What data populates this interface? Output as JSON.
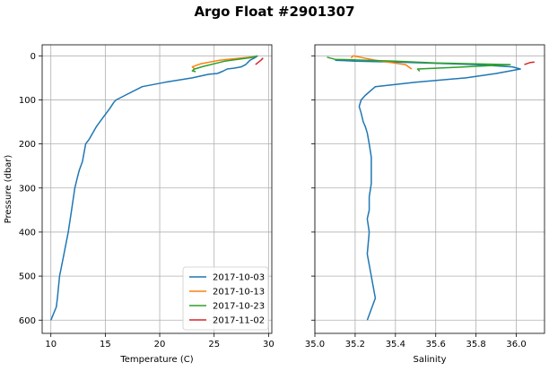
{
  "figure": {
    "title": "Argo Float #2901307"
  },
  "chart_data": [
    {
      "type": "line",
      "xlabel": "Temperature (C)",
      "ylabel": "Pressure (dbar)",
      "xlim": [
        9.2,
        30.3
      ],
      "ylim": [
        630,
        -25
      ],
      "y_inverted": true,
      "xticks": [
        10,
        15,
        20,
        25,
        30
      ],
      "yticks": [
        0,
        100,
        200,
        300,
        400,
        500,
        600
      ],
      "grid": true,
      "legend": "lower-right",
      "series": [
        {
          "name": "2017-10-03",
          "color": "#1f77b4",
          "x": [
            29.0,
            28.7,
            28.3,
            27.9,
            27.5,
            26.8,
            26.2,
            25.8,
            25.3,
            24.5,
            23.0,
            20.5,
            18.4,
            16.8,
            16.0,
            15.8,
            15.4,
            14.8,
            14.2,
            13.5,
            13.2,
            12.9,
            12.6,
            12.4,
            12.2,
            11.9,
            11.6,
            11.2,
            10.8,
            10.6,
            10.5,
            10.0
          ],
          "y": [
            0,
            5,
            10,
            20,
            25,
            28,
            30,
            35,
            40,
            42,
            50,
            60,
            70,
            90,
            100,
            105,
            120,
            140,
            160,
            190,
            200,
            240,
            260,
            280,
            300,
            350,
            400,
            450,
            500,
            550,
            570,
            600
          ]
        },
        {
          "name": "2017-10-13",
          "color": "#ff7f0e",
          "x": [
            28.8,
            27.5,
            25.5,
            23.8,
            23.0,
            23.2
          ],
          "y": [
            2,
            5,
            10,
            18,
            25,
            30
          ]
        },
        {
          "name": "2017-10-23",
          "color": "#2ca02c",
          "x": [
            29.0,
            28.4,
            26.0,
            24.0,
            23.2,
            23.0,
            23.3
          ],
          "y": [
            0,
            4,
            12,
            24,
            30,
            34,
            36
          ]
        },
        {
          "name": "2017-11-02",
          "color": "#d62728",
          "x": [
            29.5,
            29.3,
            28.8
          ],
          "y": [
            5,
            10,
            20
          ]
        }
      ]
    },
    {
      "type": "line",
      "xlabel": "Salinity",
      "xlim": [
        35.0,
        36.14
      ],
      "ylim": [
        630,
        -25
      ],
      "y_inverted": true,
      "xticks": [
        "35.0",
        "35.2",
        "35.4",
        "35.6",
        "35.8",
        "36.0"
      ],
      "grid": true,
      "series": [
        {
          "name": "2017-10-03",
          "color": "#1f77b4",
          "x": [
            35.1,
            35.2,
            35.4,
            35.6,
            35.8,
            35.98,
            36.02,
            35.9,
            35.75,
            35.5,
            35.3,
            35.25,
            35.23,
            35.22,
            35.23,
            35.24,
            35.25,
            35.26,
            35.27,
            35.28,
            35.28,
            35.28,
            35.27,
            35.27,
            35.26,
            35.27,
            35.26,
            35.28,
            35.3,
            35.26
          ],
          "y": [
            10,
            12,
            14,
            17,
            20,
            25,
            30,
            40,
            50,
            60,
            70,
            90,
            100,
            115,
            130,
            150,
            160,
            175,
            200,
            230,
            260,
            290,
            320,
            350,
            370,
            400,
            450,
            500,
            550,
            600
          ]
        },
        {
          "name": "2017-10-13",
          "color": "#ff7f0e",
          "x": [
            35.18,
            35.19,
            35.3,
            35.45,
            35.48
          ],
          "y": [
            5,
            0,
            10,
            20,
            30
          ]
        },
        {
          "name": "2017-10-23",
          "color": "#2ca02c",
          "x": [
            35.06,
            35.1,
            35.4,
            35.6,
            35.97,
            35.7,
            35.51,
            35.52
          ],
          "y": [
            3,
            8,
            12,
            16,
            20,
            26,
            30,
            35
          ]
        },
        {
          "name": "2017-11-02",
          "color": "#d62728",
          "x": [
            36.09,
            36.07,
            36.04
          ],
          "y": [
            14,
            15,
            20
          ]
        }
      ]
    }
  ]
}
